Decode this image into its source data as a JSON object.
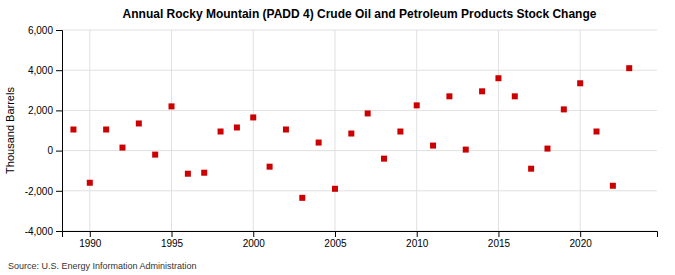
{
  "chart_data": {
    "type": "scatter",
    "title": "Annual Rocky Mountain (PADD 4) Crude Oil and Petroleum Products Stock Change",
    "y_label": "Thousand Barrels",
    "annotations": [
      "Source: U.S. Energy Information Administration"
    ],
    "color": "#cc0000",
    "marker": "square",
    "grid": true,
    "xlim": [
      1988.3,
      2024.7
    ],
    "xticks": [
      1990,
      1995,
      2000,
      2005,
      2010,
      2015,
      2020
    ],
    "ylim": [
      -4000,
      6000
    ],
    "yticks": [
      {
        "value": -4000,
        "label": "-4,000"
      },
      {
        "value": -2000,
        "label": "-2,000"
      },
      0,
      {
        "value": 2000,
        "label": "2,000"
      },
      {
        "value": 4000,
        "label": "4,000"
      },
      {
        "value": 6000,
        "label": "6,000"
      }
    ],
    "x": [
      1989,
      1990,
      1991,
      1992,
      1993,
      1994,
      1995,
      1996,
      1997,
      1998,
      1999,
      2000,
      2001,
      2002,
      2003,
      2004,
      2005,
      2006,
      2007,
      2008,
      2009,
      2010,
      2011,
      2012,
      2013,
      2014,
      2015,
      2016,
      2017,
      2018,
      2019,
      2020,
      2021,
      2022,
      2023
    ],
    "values": [
      1050,
      -1600,
      1050,
      150,
      1350,
      -200,
      2200,
      -1150,
      -1100,
      950,
      1150,
      1650,
      -800,
      1050,
      -2350,
      400,
      -1900,
      850,
      1850,
      -400,
      950,
      2250,
      250,
      2700,
      50,
      2950,
      3600,
      2700,
      -900,
      100,
      2050,
      3350,
      950,
      -1750,
      4100
    ]
  }
}
